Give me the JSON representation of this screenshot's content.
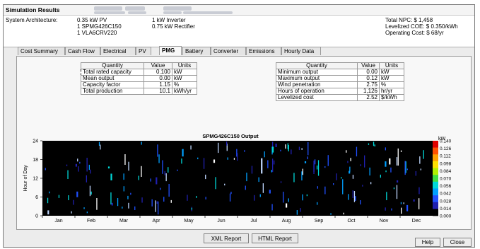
{
  "window": {
    "title": "Simulation Results"
  },
  "summary": {
    "arch_label": "System Architecture:",
    "arch_col1": [
      "0.35 kW PV",
      "1 SPMG426C150",
      "1 VLA6CRV220"
    ],
    "arch_col2": [
      "1 kW Inverter",
      "0.75 kW Rectifier"
    ],
    "npc": "Total NPC:  $ 1,458",
    "coe": "Levelized COE:  $ 0.350/kWh",
    "opcost": "Operating Cost:  $ 68/yr"
  },
  "tabs": [
    "Cost Summary",
    "Cash Flow",
    "Electrical",
    "PV",
    "PMG",
    "Battery",
    "Converter",
    "Emissions",
    "Hourly Data"
  ],
  "active_tab": "PMG",
  "table_left": {
    "headers": [
      "Quantity",
      "Value",
      "Units"
    ],
    "rows": [
      [
        "Total rated capacity",
        "0.100",
        "kW"
      ],
      [
        "Mean output",
        "0.00",
        "kW"
      ],
      [
        "Capacity factor",
        "1.15",
        "%"
      ],
      [
        "Total production",
        "10.1",
        "kWh/yr"
      ]
    ]
  },
  "table_right": {
    "headers": [
      "Quantity",
      "Value",
      "Units"
    ],
    "rows": [
      [
        "Minimum output",
        "0.00",
        "kW"
      ],
      [
        "Maximum output",
        "0.12",
        "kW"
      ],
      [
        "Wind penetration",
        "2.75",
        "%"
      ],
      [
        "Hours of operation",
        "1,126",
        "hr/yr"
      ],
      [
        "Levelized cost",
        "2.52",
        "$/kWh"
      ]
    ]
  },
  "chart_data": {
    "type": "heatmap",
    "title": "SPMG426C150 Output",
    "ylabel": "Hour of Day",
    "y_ticks": [
      "0",
      "6",
      "12",
      "18",
      "24"
    ],
    "ylim": [
      0,
      24
    ],
    "x_ticks": [
      "Jan",
      "Feb",
      "Mar",
      "Apr",
      "May",
      "Jun",
      "Jul",
      "Aug",
      "Sep",
      "Oct",
      "Nov",
      "Dec"
    ],
    "colorbar_unit": "kW",
    "colorbar_ticks": [
      "0.140",
      "0.126",
      "0.112",
      "0.098",
      "0.084",
      "0.070",
      "0.056",
      "0.042",
      "0.028",
      "0.014",
      "0.000"
    ],
    "colorbar_colors": [
      "#e00000",
      "#ff5000",
      "#ffa000",
      "#ffe000",
      "#b0f000",
      "#40e040",
      "#00d8d8",
      "#00a0ff",
      "#2050ff",
      "#2020b0",
      "#000000"
    ],
    "background_color": "#000000"
  },
  "buttons": {
    "xml": "XML Report",
    "html": "HTML Report",
    "help": "Help",
    "close": "Close"
  }
}
